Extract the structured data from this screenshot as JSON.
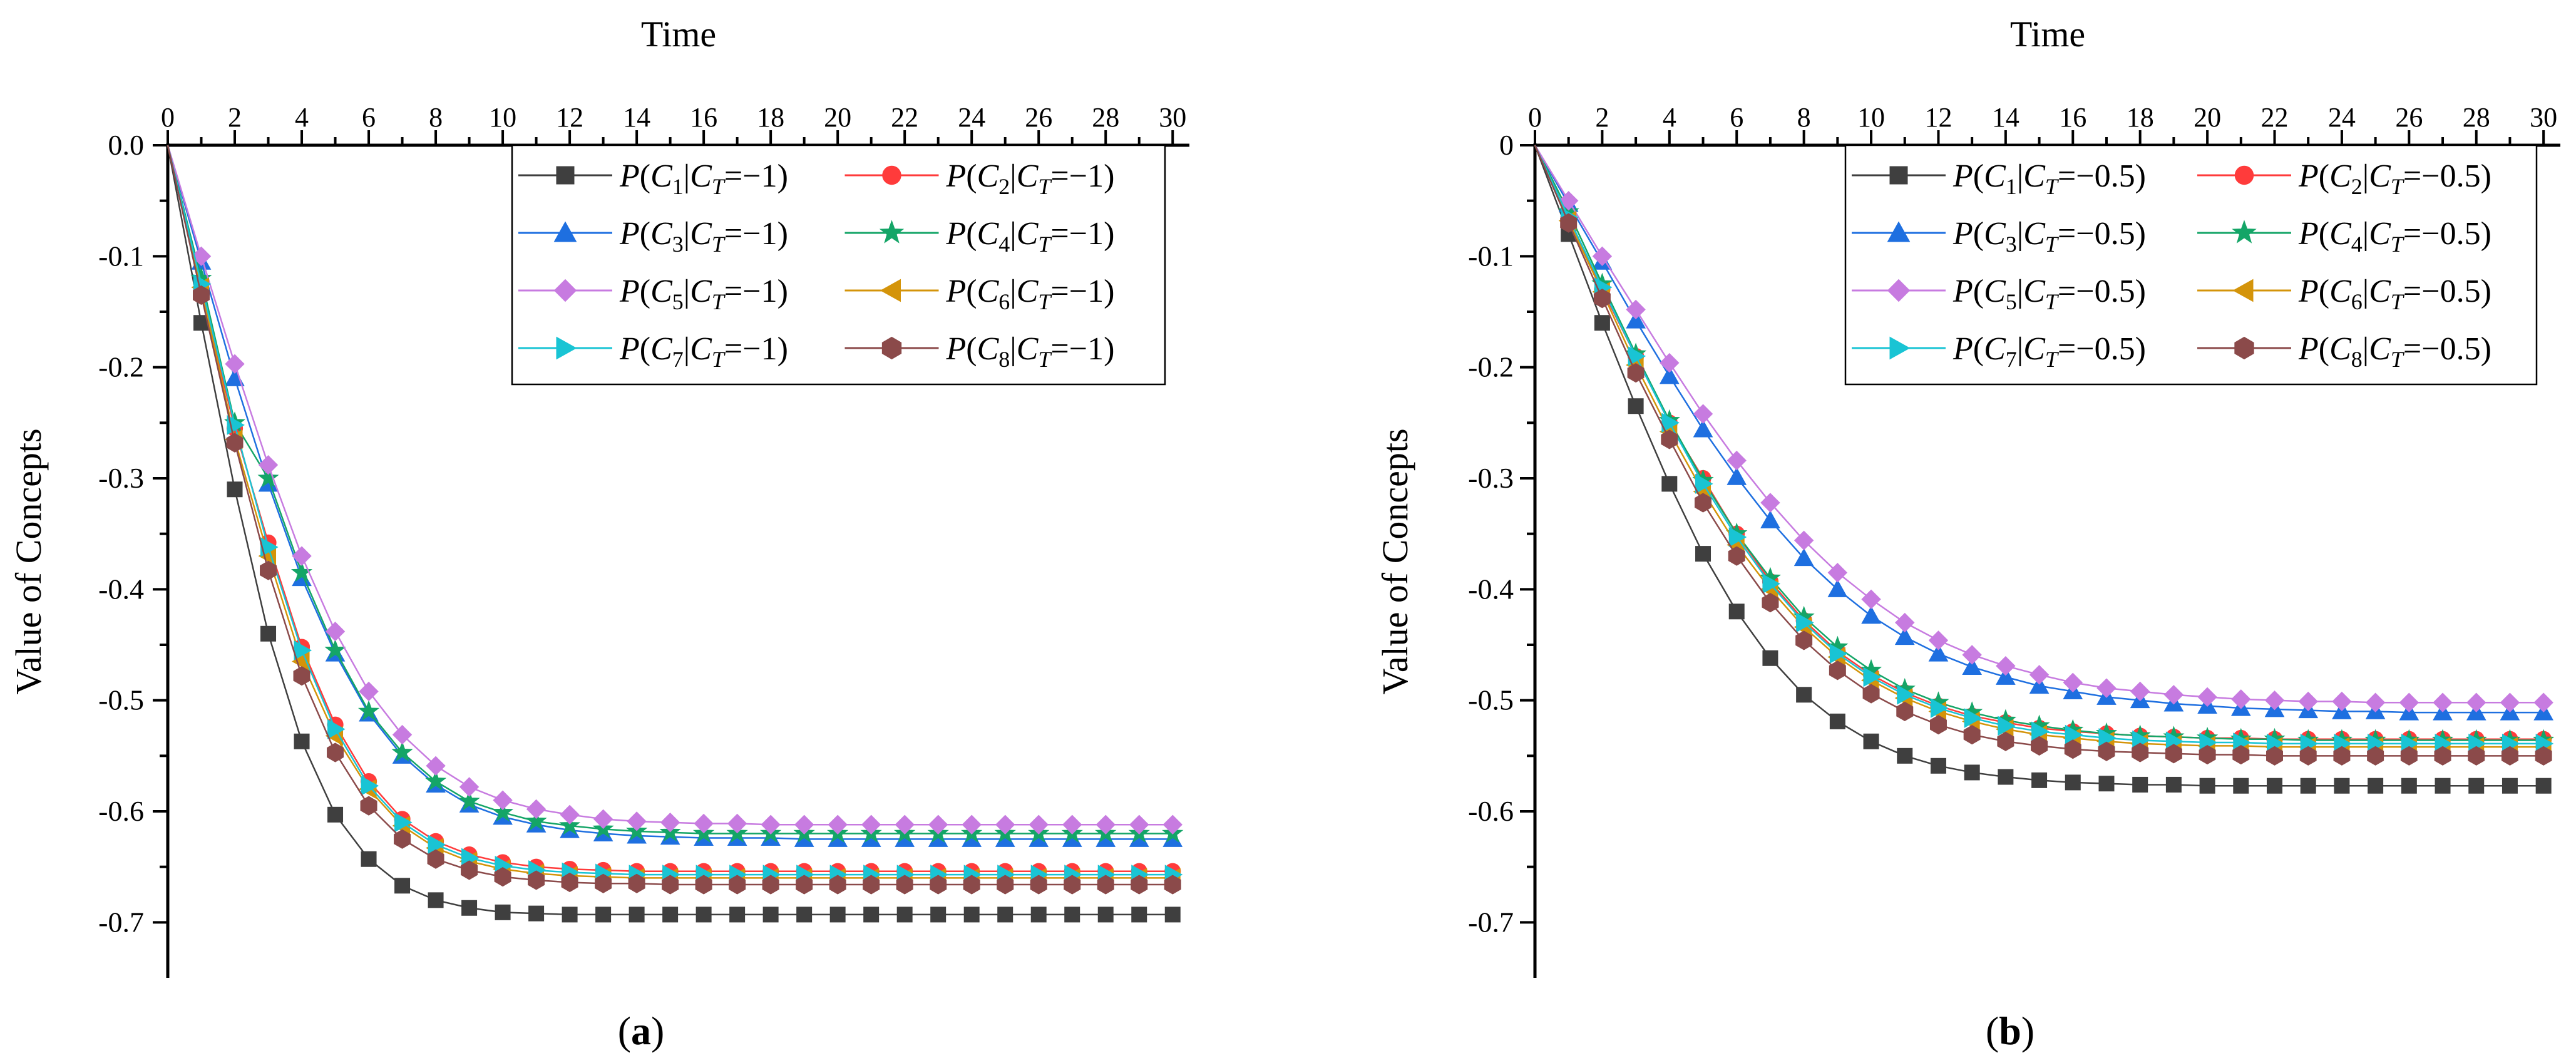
{
  "chart_data": [
    {
      "type": "line",
      "panel_label": "a",
      "title": "Time",
      "xlabel": "Time",
      "ylabel": "Value of Concepts",
      "xlim": [
        0,
        30.5
      ],
      "ylim": [
        0,
        -0.75
      ],
      "xticks": [
        "0",
        "2",
        "4",
        "6",
        "8",
        "10",
        "12",
        "14",
        "16",
        "18",
        "20",
        "22",
        "24",
        "26",
        "28",
        "30"
      ],
      "yticks": [
        "0.0",
        "-0.1",
        "-0.2",
        "-0.3",
        "-0.4",
        "-0.5",
        "-0.6",
        "-0.7"
      ],
      "ct_value": "−1",
      "legend_position": "top-right",
      "x": [
        0,
        1,
        2,
        3,
        4,
        5,
        6,
        7,
        8,
        9,
        10,
        11,
        12,
        13,
        14,
        15,
        16,
        17,
        18,
        19,
        20,
        21,
        22,
        23,
        24,
        25,
        26,
        27,
        28,
        29,
        30
      ],
      "series": [
        {
          "name": "P(C1|CT=−1)",
          "sub": "1",
          "color": "#3f3f3f",
          "marker": "square",
          "values": [
            0,
            -0.16,
            -0.31,
            -0.44,
            -0.537,
            -0.603,
            -0.643,
            -0.667,
            -0.68,
            -0.687,
            -0.691,
            -0.692,
            -0.693,
            -0.693,
            -0.693,
            -0.693,
            -0.693,
            -0.693,
            -0.693,
            -0.693,
            -0.693,
            -0.693,
            -0.693,
            -0.693,
            -0.693,
            -0.693,
            -0.693,
            -0.693,
            -0.693,
            -0.693,
            -0.693
          ]
        },
        {
          "name": "P(C2|CT=−1)",
          "sub": "2",
          "color": "#ff3b3b",
          "marker": "circle",
          "values": [
            0,
            -0.13,
            -0.255,
            -0.358,
            -0.452,
            -0.522,
            -0.573,
            -0.607,
            -0.627,
            -0.639,
            -0.646,
            -0.65,
            -0.652,
            -0.653,
            -0.654,
            -0.654,
            -0.654,
            -0.654,
            -0.654,
            -0.654,
            -0.654,
            -0.654,
            -0.654,
            -0.654,
            -0.654,
            -0.654,
            -0.654,
            -0.654,
            -0.654,
            -0.654,
            -0.654
          ]
        },
        {
          "name": "P(C3|CT=−1)",
          "sub": "3",
          "color": "#1e6fe0",
          "marker": "triangle-up",
          "values": [
            0,
            -0.105,
            -0.21,
            -0.305,
            -0.39,
            -0.458,
            -0.512,
            -0.55,
            -0.576,
            -0.594,
            -0.605,
            -0.612,
            -0.617,
            -0.62,
            -0.622,
            -0.623,
            -0.624,
            -0.624,
            -0.624,
            -0.625,
            -0.625,
            -0.625,
            -0.625,
            -0.625,
            -0.625,
            -0.625,
            -0.625,
            -0.625,
            -0.625,
            -0.625,
            -0.625
          ]
        },
        {
          "name": "P(C4|CT=−1)",
          "sub": "4",
          "color": "#14a567",
          "marker": "star",
          "values": [
            0,
            -0.12,
            -0.25,
            -0.3,
            -0.385,
            -0.455,
            -0.51,
            -0.547,
            -0.573,
            -0.591,
            -0.601,
            -0.609,
            -0.613,
            -0.616,
            -0.618,
            -0.619,
            -0.62,
            -0.62,
            -0.62,
            -0.62,
            -0.62,
            -0.62,
            -0.62,
            -0.62,
            -0.62,
            -0.62,
            -0.62,
            -0.62,
            -0.62,
            -0.62,
            -0.62
          ]
        },
        {
          "name": "P(C5|CT=−1)",
          "sub": "5",
          "color": "#c77be0",
          "marker": "diamond",
          "values": [
            0,
            -0.1,
            -0.197,
            -0.288,
            -0.37,
            -0.438,
            -0.492,
            -0.531,
            -0.559,
            -0.578,
            -0.59,
            -0.598,
            -0.603,
            -0.607,
            -0.609,
            -0.61,
            -0.611,
            -0.611,
            -0.612,
            -0.612,
            -0.612,
            -0.612,
            -0.612,
            -0.612,
            -0.612,
            -0.612,
            -0.612,
            -0.612,
            -0.612,
            -0.612,
            -0.612
          ]
        },
        {
          "name": "P(C6|CT=−1)",
          "sub": "6",
          "color": "#d4940a",
          "marker": "triangle-left",
          "values": [
            0,
            -0.128,
            -0.265,
            -0.37,
            -0.465,
            -0.532,
            -0.58,
            -0.613,
            -0.633,
            -0.645,
            -0.652,
            -0.656,
            -0.658,
            -0.659,
            -0.66,
            -0.66,
            -0.66,
            -0.66,
            -0.66,
            -0.66,
            -0.66,
            -0.66,
            -0.66,
            -0.66,
            -0.66,
            -0.66,
            -0.66,
            -0.66,
            -0.66,
            -0.66,
            -0.66
          ]
        },
        {
          "name": "P(C7|CT=−1)",
          "sub": "7",
          "color": "#19c4d4",
          "marker": "triangle-right",
          "values": [
            0,
            -0.125,
            -0.252,
            -0.362,
            -0.455,
            -0.526,
            -0.577,
            -0.61,
            -0.63,
            -0.642,
            -0.649,
            -0.653,
            -0.655,
            -0.656,
            -0.657,
            -0.657,
            -0.657,
            -0.657,
            -0.657,
            -0.657,
            -0.657,
            -0.657,
            -0.657,
            -0.657,
            -0.657,
            -0.657,
            -0.657,
            -0.657,
            -0.657,
            -0.657,
            -0.657
          ]
        },
        {
          "name": "P(C8|CT=−1)",
          "sub": "8",
          "color": "#8b4a4a",
          "marker": "hexagon",
          "values": [
            0,
            -0.135,
            -0.268,
            -0.383,
            -0.478,
            -0.547,
            -0.595,
            -0.625,
            -0.643,
            -0.653,
            -0.659,
            -0.662,
            -0.664,
            -0.665,
            -0.665,
            -0.666,
            -0.666,
            -0.666,
            -0.666,
            -0.666,
            -0.666,
            -0.666,
            -0.666,
            -0.666,
            -0.666,
            -0.666,
            -0.666,
            -0.666,
            -0.666,
            -0.666,
            -0.666
          ]
        }
      ]
    },
    {
      "type": "line",
      "panel_label": "b",
      "title": "Time",
      "xlabel": "Time",
      "ylabel": "Value of Concepts",
      "xlim": [
        0,
        30.5
      ],
      "ylim": [
        0,
        -0.75
      ],
      "xticks": [
        "0",
        "2",
        "4",
        "6",
        "8",
        "10",
        "12",
        "14",
        "16",
        "18",
        "20",
        "22",
        "24",
        "26",
        "28",
        "30"
      ],
      "yticks": [
        "0",
        "-0.1",
        "-0.2",
        "-0.3",
        "-0.4",
        "-0.5",
        "-0.6",
        "-0.7"
      ],
      "ct_value": "−0.5",
      "legend_position": "top-right",
      "x": [
        0,
        1,
        2,
        3,
        4,
        5,
        6,
        7,
        8,
        9,
        10,
        11,
        12,
        13,
        14,
        15,
        16,
        17,
        18,
        19,
        20,
        21,
        22,
        23,
        24,
        25,
        26,
        27,
        28,
        29,
        30
      ],
      "series": [
        {
          "name": "P(C1|CT=−0.5)",
          "sub": "1",
          "color": "#3f3f3f",
          "marker": "square",
          "values": [
            0,
            -0.08,
            -0.16,
            -0.235,
            -0.305,
            -0.368,
            -0.42,
            -0.462,
            -0.495,
            -0.519,
            -0.537,
            -0.55,
            -0.559,
            -0.565,
            -0.569,
            -0.572,
            -0.574,
            -0.575,
            -0.576,
            -0.576,
            -0.577,
            -0.577,
            -0.577,
            -0.577,
            -0.577,
            -0.577,
            -0.577,
            -0.577,
            -0.577,
            -0.577,
            -0.577
          ]
        },
        {
          "name": "P(C2|CT=−0.5)",
          "sub": "2",
          "color": "#ff3b3b",
          "marker": "circle",
          "values": [
            0,
            -0.065,
            -0.13,
            -0.19,
            -0.25,
            -0.3,
            -0.35,
            -0.393,
            -0.428,
            -0.456,
            -0.477,
            -0.493,
            -0.505,
            -0.514,
            -0.52,
            -0.525,
            -0.528,
            -0.53,
            -0.532,
            -0.533,
            -0.534,
            -0.534,
            -0.535,
            -0.535,
            -0.535,
            -0.535,
            -0.535,
            -0.535,
            -0.535,
            -0.535,
            -0.535
          ]
        },
        {
          "name": "P(C3|CT=−0.5)",
          "sub": "3",
          "color": "#1e6fe0",
          "marker": "triangle-up",
          "values": [
            0,
            -0.053,
            -0.105,
            -0.158,
            -0.208,
            -0.256,
            -0.299,
            -0.338,
            -0.372,
            -0.4,
            -0.424,
            -0.443,
            -0.458,
            -0.47,
            -0.479,
            -0.487,
            -0.492,
            -0.497,
            -0.5,
            -0.503,
            -0.505,
            -0.507,
            -0.508,
            -0.509,
            -0.51,
            -0.51,
            -0.511,
            -0.511,
            -0.511,
            -0.511,
            -0.511
          ]
        },
        {
          "name": "P(C4|CT=−0.5)",
          "sub": "4",
          "color": "#14a567",
          "marker": "star",
          "values": [
            0,
            -0.06,
            -0.125,
            -0.188,
            -0.248,
            -0.302,
            -0.35,
            -0.39,
            -0.425,
            -0.452,
            -0.473,
            -0.49,
            -0.502,
            -0.511,
            -0.518,
            -0.523,
            -0.527,
            -0.53,
            -0.532,
            -0.533,
            -0.534,
            -0.535,
            -0.535,
            -0.536,
            -0.536,
            -0.536,
            -0.536,
            -0.536,
            -0.536,
            -0.536,
            -0.536
          ]
        },
        {
          "name": "P(C5|CT=−0.5)",
          "sub": "5",
          "color": "#c77be0",
          "marker": "diamond",
          "values": [
            0,
            -0.05,
            -0.1,
            -0.148,
            -0.196,
            -0.242,
            -0.284,
            -0.322,
            -0.356,
            -0.385,
            -0.409,
            -0.43,
            -0.446,
            -0.459,
            -0.469,
            -0.477,
            -0.484,
            -0.489,
            -0.492,
            -0.495,
            -0.497,
            -0.499,
            -0.5,
            -0.501,
            -0.501,
            -0.502,
            -0.502,
            -0.502,
            -0.502,
            -0.502,
            -0.502
          ]
        },
        {
          "name": "P(C6|CT=−0.5)",
          "sub": "6",
          "color": "#d4940a",
          "marker": "triangle-left",
          "values": [
            0,
            -0.068,
            -0.132,
            -0.198,
            -0.258,
            -0.312,
            -0.36,
            -0.4,
            -0.434,
            -0.461,
            -0.482,
            -0.498,
            -0.51,
            -0.519,
            -0.526,
            -0.531,
            -0.534,
            -0.537,
            -0.539,
            -0.54,
            -0.541,
            -0.541,
            -0.542,
            -0.542,
            -0.542,
            -0.542,
            -0.542,
            -0.542,
            -0.542,
            -0.542,
            -0.542
          ]
        },
        {
          "name": "P(C7|CT=−0.5)",
          "sub": "7",
          "color": "#19c4d4",
          "marker": "triangle-right",
          "values": [
            0,
            -0.065,
            -0.128,
            -0.19,
            -0.25,
            -0.305,
            -0.353,
            -0.395,
            -0.43,
            -0.458,
            -0.479,
            -0.495,
            -0.507,
            -0.516,
            -0.523,
            -0.528,
            -0.531,
            -0.534,
            -0.536,
            -0.537,
            -0.538,
            -0.538,
            -0.539,
            -0.539,
            -0.539,
            -0.539,
            -0.539,
            -0.539,
            -0.539,
            -0.539,
            -0.539
          ]
        },
        {
          "name": "P(C8|CT=−0.5)",
          "sub": "8",
          "color": "#8b4a4a",
          "marker": "hexagon",
          "values": [
            0,
            -0.07,
            -0.138,
            -0.205,
            -0.265,
            -0.322,
            -0.37,
            -0.412,
            -0.446,
            -0.473,
            -0.494,
            -0.51,
            -0.522,
            -0.531,
            -0.537,
            -0.541,
            -0.544,
            -0.546,
            -0.547,
            -0.548,
            -0.549,
            -0.549,
            -0.55,
            -0.55,
            -0.55,
            -0.55,
            -0.55,
            -0.55,
            -0.55,
            -0.55,
            -0.55
          ]
        }
      ]
    }
  ]
}
